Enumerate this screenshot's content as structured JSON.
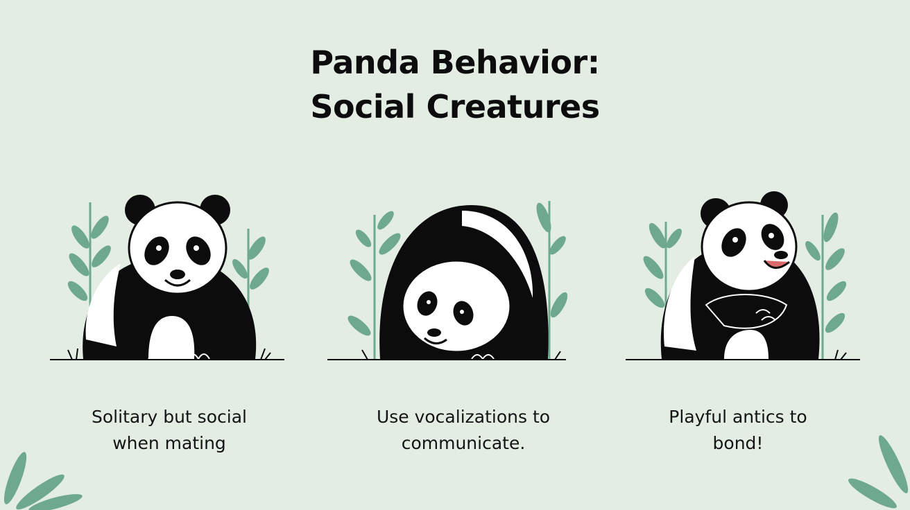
{
  "title": {
    "line1": "Panda Behavior:",
    "line2": "Social Creatures"
  },
  "cards": [
    {
      "icon": "sitting-panda-icon",
      "line1": "Solitary but social",
      "line2": "when mating"
    },
    {
      "icon": "crouching-panda-icon",
      "line1": "Use vocalizations to",
      "line2": "communicate."
    },
    {
      "icon": "playful-panda-icon",
      "line1": "Playful antics to",
      "line2": "bond!"
    }
  ],
  "colors": {
    "background": "#e3ede3",
    "leaf": "#6ea88f",
    "ink": "#0c0c0c",
    "panda_white": "#ffffff"
  }
}
